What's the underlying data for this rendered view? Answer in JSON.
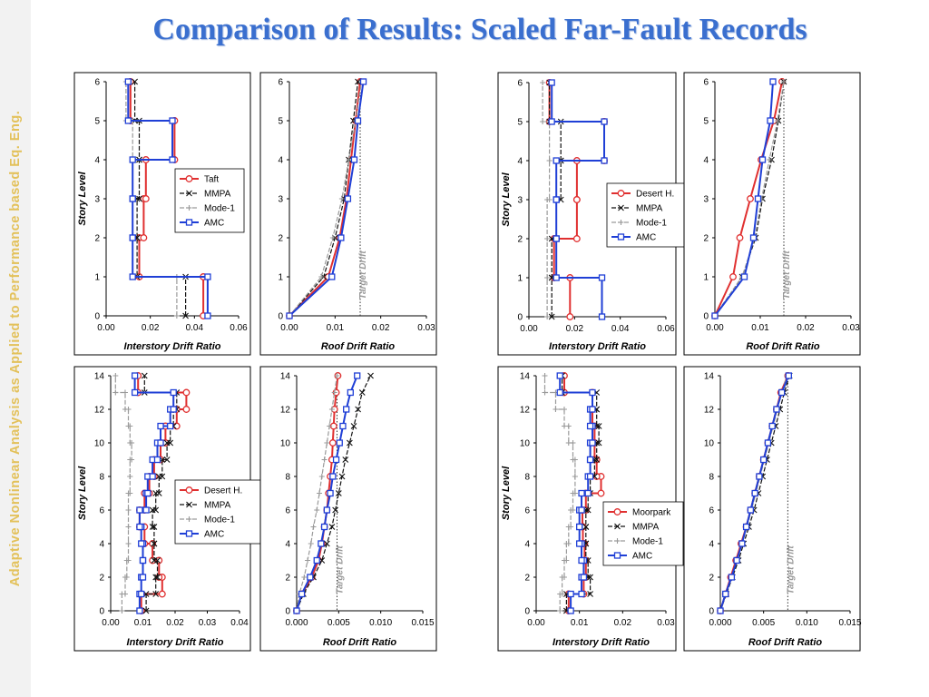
{
  "slide": {
    "title": "Comparison of Results: Scaled Far-Fault Records",
    "sidebar_text": "Adaptive Nonlinear Analysis as Applied to Performance based Eq. Eng."
  },
  "series_styles": {
    "record": {
      "color": "#e03030",
      "marker": "circle"
    },
    "MMPA": {
      "color": "#111111",
      "marker": "x"
    },
    "Mode-1": {
      "color": "#9a9a9a",
      "marker": "plus"
    },
    "AMC": {
      "color": "#1f3fd6",
      "marker": "square"
    }
  },
  "chart_data": [
    {
      "type": "line",
      "kind": "interstory",
      "xlabel": "Interstory Drift Ratio",
      "ylabel": "Story Level",
      "xlim": [
        0,
        0.06
      ],
      "xticks": [
        0.0,
        0.02,
        0.04,
        0.06
      ],
      "xtick_labels": [
        "0.00",
        "0.02",
        "0.04",
        "0.06"
      ],
      "ylim": [
        0,
        6
      ],
      "yticks": [
        0,
        1,
        2,
        3,
        4,
        5,
        6
      ],
      "legend": [
        "Taft",
        "MMPA",
        "Mode-1",
        "AMC"
      ],
      "series": [
        {
          "name": "Taft",
          "style": "record",
          "values": [
            0.044,
            0.015,
            0.017,
            0.018,
            0.031,
            0.011
          ]
        },
        {
          "name": "MMPA",
          "style": "MMPA",
          "values": [
            0.036,
            0.014,
            0.014,
            0.015,
            0.015,
            0.013
          ]
        },
        {
          "name": "Mode-1",
          "style": "Mode-1",
          "values": [
            0.032,
            0.012,
            0.012,
            0.012,
            0.012,
            0.009
          ]
        },
        {
          "name": "AMC",
          "style": "AMC",
          "values": [
            0.046,
            0.012,
            0.012,
            0.012,
            0.03,
            0.01
          ]
        }
      ]
    },
    {
      "type": "line",
      "kind": "roof",
      "xlabel": "Roof Drift Ratio",
      "target_label": "Target Drift",
      "target": 0.0155,
      "xlim": [
        0,
        0.03
      ],
      "xticks": [
        0.0,
        0.01,
        0.02,
        0.03
      ],
      "xtick_labels": [
        "0.00",
        "0.01",
        "0.02",
        "0.03"
      ],
      "ylim": [
        0,
        6
      ],
      "yticks": [
        0,
        1,
        2,
        3,
        4,
        5,
        6
      ],
      "series": [
        {
          "name": "Taft",
          "style": "record",
          "values": [
            0,
            0.0085,
            0.011,
            0.0125,
            0.0135,
            0.0145,
            0.0155
          ]
        },
        {
          "name": "MMPA",
          "style": "MMPA",
          "values": [
            0,
            0.0075,
            0.01,
            0.012,
            0.013,
            0.014,
            0.015
          ]
        },
        {
          "name": "Mode-1",
          "style": "Mode-1",
          "values": [
            0,
            0.007,
            0.0095,
            0.0115,
            0.013,
            0.0145,
            0.0158
          ]
        },
        {
          "name": "AMC",
          "style": "AMC",
          "values": [
            0,
            0.0093,
            0.0113,
            0.0128,
            0.0142,
            0.015,
            0.0162
          ]
        }
      ]
    },
    {
      "type": "line",
      "kind": "interstory",
      "xlabel": "Interstory Drift Ratio",
      "ylabel": "Story Level",
      "xlim": [
        0,
        0.06
      ],
      "xticks": [
        0.0,
        0.02,
        0.04,
        0.06
      ],
      "xtick_labels": [
        "0.00",
        "0.02",
        "0.04",
        "0.06"
      ],
      "ylim": [
        0,
        6
      ],
      "yticks": [
        0,
        1,
        2,
        3,
        4,
        5,
        6
      ],
      "legend": [
        "Desert H.",
        "MMPA",
        "Mode-1",
        "AMC"
      ],
      "series": [
        {
          "name": "Desert H.",
          "style": "record",
          "values": [
            0.018,
            0.011,
            0.021,
            0.021,
            0.033,
            0.009
          ]
        },
        {
          "name": "MMPA",
          "style": "MMPA",
          "values": [
            0.01,
            0.01,
            0.012,
            0.014,
            0.014,
            0.009
          ]
        },
        {
          "name": "Mode-1",
          "style": "Mode-1",
          "values": [
            0.008,
            0.008,
            0.008,
            0.009,
            0.009,
            0.006
          ]
        },
        {
          "name": "AMC",
          "style": "AMC",
          "values": [
            0.032,
            0.012,
            0.012,
            0.012,
            0.033,
            0.01
          ]
        }
      ]
    },
    {
      "type": "line",
      "kind": "roof",
      "xlabel": "Roof Drift Ratio",
      "target_label": "Target Drift",
      "target": 0.0152,
      "xlim": [
        0,
        0.03
      ],
      "xticks": [
        0.0,
        0.01,
        0.02,
        0.03
      ],
      "xtick_labels": [
        "0.00",
        "0.01",
        "0.02",
        "0.03"
      ],
      "ylim": [
        0,
        6
      ],
      "yticks": [
        0,
        1,
        2,
        3,
        4,
        5,
        6
      ],
      "series": [
        {
          "name": "Desert H.",
          "style": "record",
          "values": [
            0,
            0.004,
            0.0055,
            0.0078,
            0.0102,
            0.013,
            0.0148
          ]
        },
        {
          "name": "MMPA",
          "style": "MMPA",
          "values": [
            0,
            0.006,
            0.009,
            0.0105,
            0.0125,
            0.014,
            0.0152
          ]
        },
        {
          "name": "Mode-1",
          "style": "Mode-1",
          "values": [
            0,
            0.006,
            0.0088,
            0.0103,
            0.012,
            0.0138,
            0.0152
          ]
        },
        {
          "name": "AMC",
          "style": "AMC",
          "values": [
            0,
            0.0065,
            0.0085,
            0.0095,
            0.0105,
            0.0122,
            0.0128
          ]
        }
      ]
    },
    {
      "type": "line",
      "kind": "interstory",
      "xlabel": "Interstory Drift Ratio",
      "ylabel": "Story Level",
      "xlim": [
        0,
        0.04
      ],
      "xticks": [
        0.0,
        0.01,
        0.02,
        0.03,
        0.04
      ],
      "xtick_labels": [
        "0.00",
        "0.01",
        "0.02",
        "0.03",
        "0.04"
      ],
      "ylim": [
        0,
        14
      ],
      "yticks": [
        0,
        2,
        4,
        6,
        8,
        10,
        12,
        14
      ],
      "legend": [
        "Desert H.",
        "MMPA",
        "Mode-1",
        "AMC"
      ],
      "series": [
        {
          "name": "Desert H.",
          "style": "record",
          "values": [
            0.0095,
            0.016,
            0.015,
            0.013,
            0.0105,
            0.009,
            0.0105,
            0.012,
            0.0135,
            0.0155,
            0.017,
            0.0205,
            0.0235,
            0.0085
          ]
        },
        {
          "name": "MMPA",
          "style": "MMPA",
          "values": [
            0.011,
            0.014,
            0.0145,
            0.0135,
            0.0135,
            0.013,
            0.014,
            0.015,
            0.016,
            0.0175,
            0.0185,
            0.0195,
            0.0205,
            0.0105
          ]
        },
        {
          "name": "Mode-1",
          "style": "Mode-1",
          "values": [
            0.0035,
            0.0045,
            0.005,
            0.0055,
            0.0055,
            0.0055,
            0.0055,
            0.006,
            0.006,
            0.0065,
            0.006,
            0.0055,
            0.0045,
            0.0015
          ]
        },
        {
          "name": "AMC",
          "style": "AMC",
          "values": [
            0.009,
            0.0095,
            0.01,
            0.01,
            0.0095,
            0.009,
            0.011,
            0.0115,
            0.013,
            0.0145,
            0.0155,
            0.0185,
            0.0195,
            0.0075
          ]
        }
      ]
    },
    {
      "type": "line",
      "kind": "roof",
      "xlabel": "Roof Drift Ratio",
      "target_label": "Target Drift",
      "target": 0.0048,
      "xlim": [
        0,
        0.015
      ],
      "xticks": [
        0.0,
        0.005,
        0.01,
        0.015
      ],
      "xtick_labels": [
        "0.000",
        "0.005",
        "0.010",
        "0.015"
      ],
      "ylim": [
        0,
        14
      ],
      "yticks": [
        0,
        2,
        4,
        6,
        8,
        10,
        12,
        14
      ],
      "series": [
        {
          "name": "Desert H.",
          "style": "record",
          "values": [
            0,
            0.0006,
            0.0018,
            0.0026,
            0.003,
            0.0033,
            0.0036,
            0.0038,
            0.004,
            0.0042,
            0.0043,
            0.0044,
            0.0045,
            0.0047,
            0.0049
          ]
        },
        {
          "name": "MMPA",
          "style": "MMPA",
          "values": [
            0,
            0.0008,
            0.002,
            0.003,
            0.0036,
            0.0042,
            0.0046,
            0.005,
            0.0054,
            0.0058,
            0.0063,
            0.0068,
            0.0073,
            0.0078,
            0.0088
          ]
        },
        {
          "name": "Mode-1",
          "style": "Mode-1",
          "values": [
            0,
            0.0003,
            0.0009,
            0.0013,
            0.0017,
            0.002,
            0.0024,
            0.0027,
            0.003,
            0.0033,
            0.0036,
            0.0039,
            0.0042,
            0.0045,
            0.0048
          ]
        },
        {
          "name": "AMC",
          "style": "AMC",
          "values": [
            0,
            0.0006,
            0.0016,
            0.0024,
            0.0029,
            0.0033,
            0.0036,
            0.004,
            0.0043,
            0.0047,
            0.0051,
            0.0055,
            0.0059,
            0.0064,
            0.0072
          ]
        }
      ]
    },
    {
      "type": "line",
      "kind": "interstory",
      "xlabel": "Interstory Drift Ratio",
      "ylabel": "Story Level",
      "xlim": [
        0,
        0.03
      ],
      "xticks": [
        0.0,
        0.01,
        0.02,
        0.03
      ],
      "xtick_labels": [
        "0.00",
        "0.01",
        "0.02",
        "0.03"
      ],
      "ylim": [
        0,
        14
      ],
      "yticks": [
        0,
        2,
        4,
        6,
        8,
        10,
        12,
        14
      ],
      "legend": [
        "Moorpark",
        "MMPA",
        "Mode-1",
        "AMC"
      ],
      "series": [
        {
          "name": "Moorpark",
          "style": "record",
          "values": [
            0.0075,
            0.011,
            0.0115,
            0.0112,
            0.0108,
            0.0107,
            0.0115,
            0.015,
            0.014,
            0.0135,
            0.0135,
            0.013,
            0.013,
            0.0065
          ]
        },
        {
          "name": "MMPA",
          "style": "MMPA",
          "values": [
            0.007,
            0.0125,
            0.012,
            0.0115,
            0.0115,
            0.0115,
            0.012,
            0.0125,
            0.0135,
            0.014,
            0.0145,
            0.014,
            0.014,
            0.006
          ]
        },
        {
          "name": "Mode-1",
          "style": "Mode-1",
          "values": [
            0.0055,
            0.006,
            0.0065,
            0.007,
            0.0075,
            0.008,
            0.0085,
            0.009,
            0.009,
            0.0085,
            0.0075,
            0.0065,
            0.0045,
            0.002
          ]
        },
        {
          "name": "AMC",
          "style": "AMC",
          "values": [
            0.008,
            0.0105,
            0.011,
            0.0105,
            0.01,
            0.01,
            0.0105,
            0.012,
            0.0125,
            0.0125,
            0.013,
            0.0125,
            0.013,
            0.0055
          ]
        }
      ]
    },
    {
      "type": "line",
      "kind": "roof",
      "xlabel": "Roof Drift Ratio",
      "target_label": "Target Drift",
      "target": 0.0078,
      "xlim": [
        0,
        0.015
      ],
      "xticks": [
        0.0,
        0.005,
        0.01,
        0.015
      ],
      "xtick_labels": [
        "0.000",
        "0.005",
        "0.010",
        "0.015"
      ],
      "ylim": [
        0,
        14
      ],
      "yticks": [
        0,
        2,
        4,
        6,
        8,
        10,
        12,
        14
      ],
      "series": [
        {
          "name": "Moorpark",
          "style": "record",
          "values": [
            0,
            0.0006,
            0.0012,
            0.0018,
            0.0024,
            0.003,
            0.0035,
            0.004,
            0.0045,
            0.005,
            0.0055,
            0.006,
            0.0065,
            0.007,
            0.0078
          ]
        },
        {
          "name": "MMPA",
          "style": "MMPA",
          "values": [
            0,
            0.0007,
            0.0014,
            0.0021,
            0.0027,
            0.0033,
            0.0039,
            0.0044,
            0.0049,
            0.0054,
            0.0059,
            0.0064,
            0.0069,
            0.0074,
            0.008
          ]
        },
        {
          "name": "Mode-1",
          "style": "Mode-1",
          "values": [
            0,
            0.0006,
            0.0013,
            0.0019,
            0.0025,
            0.0031,
            0.0036,
            0.0041,
            0.0046,
            0.0051,
            0.0056,
            0.0061,
            0.0066,
            0.0071,
            0.0077
          ]
        },
        {
          "name": "AMC",
          "style": "AMC",
          "values": [
            0,
            0.0006,
            0.0013,
            0.0019,
            0.0025,
            0.003,
            0.0035,
            0.004,
            0.0045,
            0.005,
            0.0055,
            0.006,
            0.0065,
            0.0071,
            0.0079
          ]
        }
      ]
    }
  ]
}
